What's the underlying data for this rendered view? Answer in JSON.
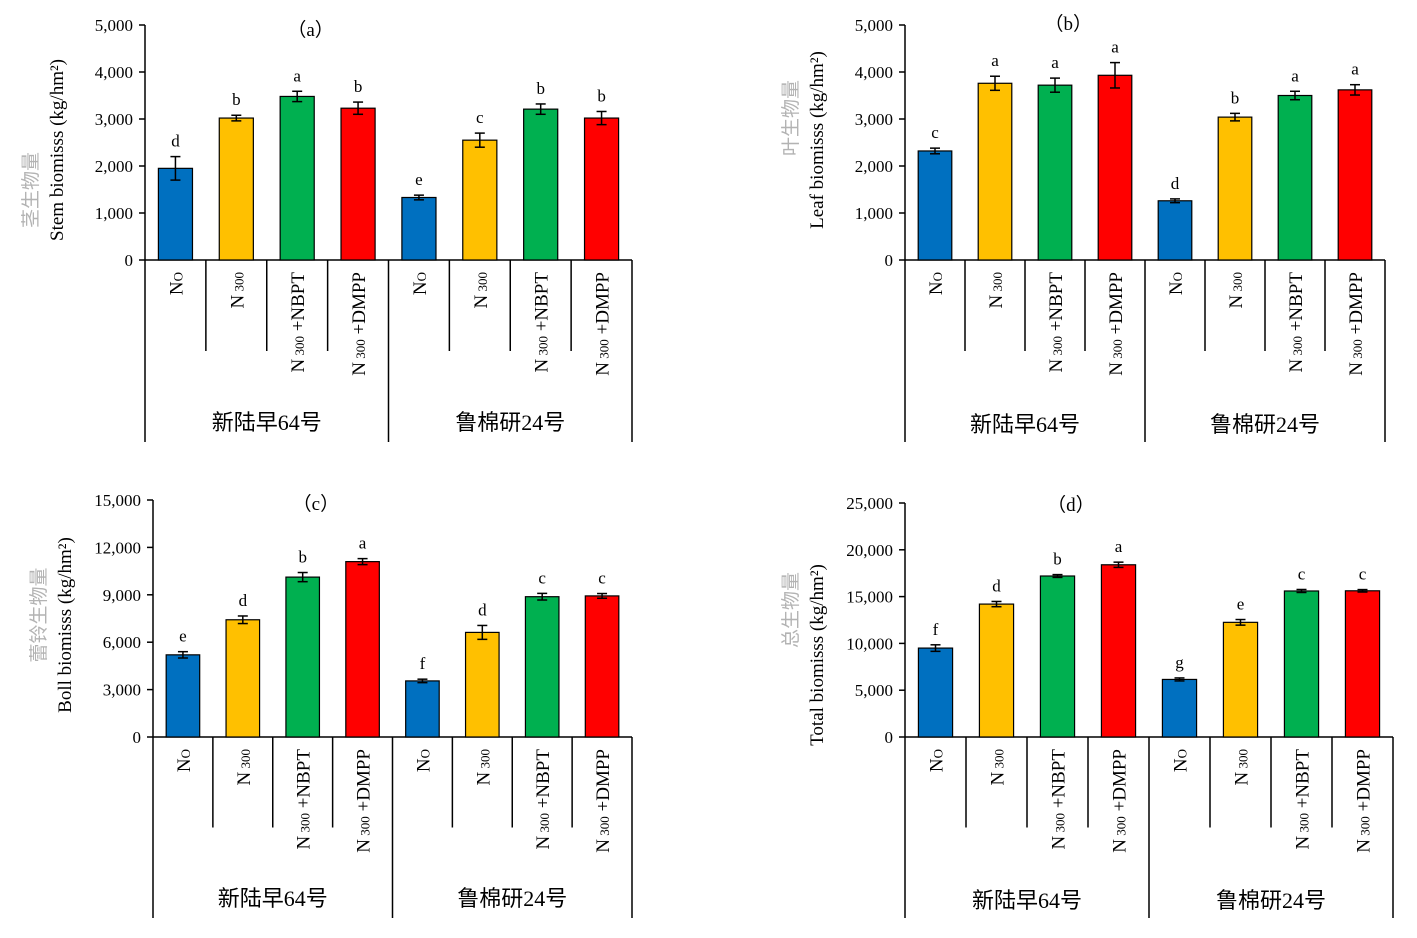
{
  "colors": {
    "N0": "#0070c0",
    "N300": "#ffc000",
    "N300_NBPT": "#00b050",
    "N300_DMPP": "#ff0000"
  },
  "group_labels": [
    "新陆早64号",
    "鲁棉研24号"
  ],
  "category_labels": [
    "N0",
    "N300",
    "N300+NBPT",
    "N300+DMPP"
  ],
  "chart_data": [
    {
      "type": "bar",
      "title": "（a）",
      "ylabel_cn": "茎生物量",
      "ylabel_en": "Stem biomisss (kg/hm²)",
      "ylim": [
        0,
        5000
      ],
      "yticks": [
        "0",
        "1,000",
        "2,000",
        "3,000",
        "4,000",
        "5,000"
      ],
      "values": [
        1950,
        3020,
        3480,
        3230,
        1330,
        2550,
        3210,
        3020
      ],
      "errors": [
        250,
        60,
        110,
        130,
        50,
        150,
        110,
        140
      ],
      "letters": [
        "d",
        "b",
        "a",
        "b",
        "e",
        "c",
        "b",
        "b"
      ]
    },
    {
      "type": "bar",
      "title": "（b）",
      "ylabel_cn": "叶生物量",
      "ylabel_en": "Leaf biomisss (kg/hm²)",
      "ylim": [
        0,
        5000
      ],
      "yticks": [
        "0",
        "1,000",
        "2,000",
        "3,000",
        "4,000",
        "5,000"
      ],
      "values": [
        2320,
        3760,
        3720,
        3930,
        1260,
        3040,
        3500,
        3620
      ],
      "errors": [
        60,
        150,
        150,
        270,
        40,
        80,
        90,
        110
      ],
      "letters": [
        "c",
        "a",
        "a",
        "a",
        "d",
        "b",
        "a",
        "a"
      ]
    },
    {
      "type": "bar",
      "title": "（c）",
      "ylabel_cn": "蕾铃生物量",
      "ylabel_en": "Boll biomisss (kg/hm²)",
      "ylim": [
        0,
        15000
      ],
      "yticks": [
        "0",
        "3,000",
        "6,000",
        "9,000",
        "12,000",
        "15,000"
      ],
      "values": [
        5200,
        7420,
        10120,
        11100,
        3550,
        6620,
        8880,
        8930
      ],
      "errors": [
        200,
        240,
        290,
        190,
        110,
        440,
        210,
        150
      ],
      "letters": [
        "e",
        "d",
        "b",
        "a",
        "f",
        "d",
        "c",
        "c"
      ]
    },
    {
      "type": "bar",
      "title": "（d）",
      "ylabel_cn": "总生物量",
      "ylabel_en": "Total biomisss (kg/hm²)",
      "ylim": [
        0,
        25000
      ],
      "yticks": [
        "0",
        "5,000",
        "10,000",
        "15,000",
        "20,000",
        "25,000"
      ],
      "values": [
        9500,
        14200,
        17200,
        18400,
        6150,
        12250,
        15600,
        15620
      ],
      "errors": [
        350,
        280,
        150,
        280,
        160,
        300,
        160,
        130
      ],
      "letters": [
        "f",
        "d",
        "b",
        "a",
        "g",
        "e",
        "c",
        "c"
      ]
    }
  ]
}
